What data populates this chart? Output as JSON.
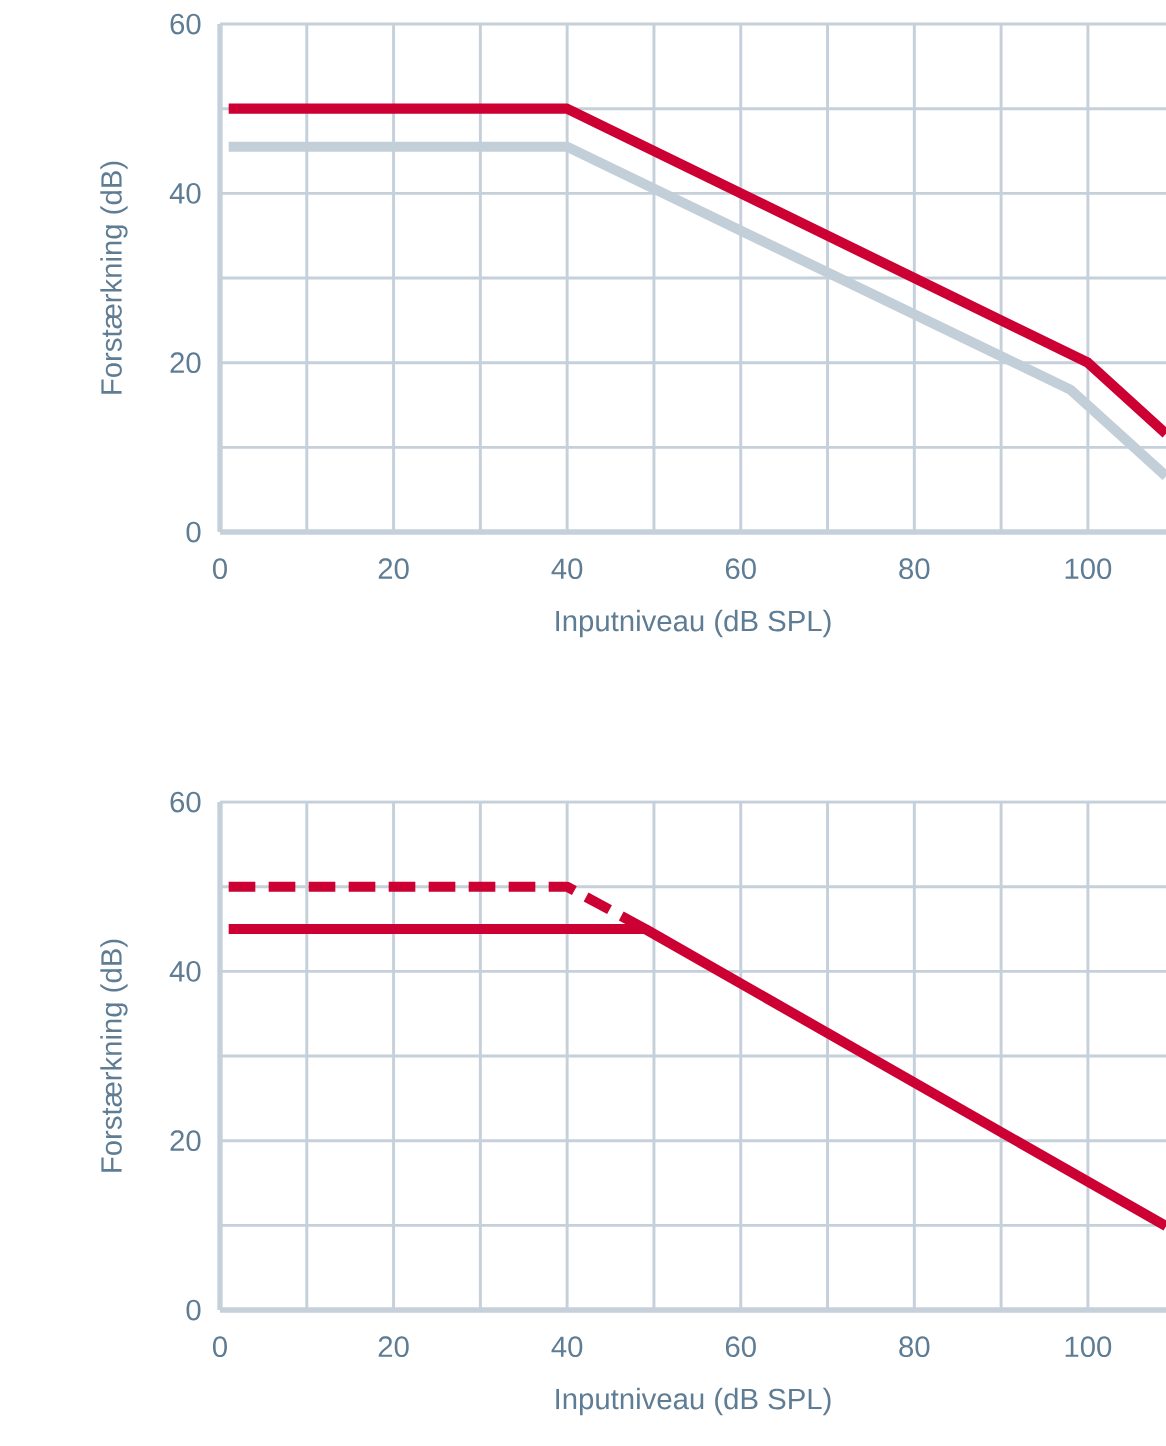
{
  "chart_data": [
    {
      "type": "line",
      "xlabel": "Inputniveau (dB SPL)",
      "ylabel": "Forstærkning (dB)",
      "xlim": [
        0,
        109
      ],
      "ylim": [
        0,
        60
      ],
      "xticks": [
        0,
        {
          "value": 10,
          "label": null
        },
        20,
        {
          "value": 30,
          "label": null
        },
        40,
        {
          "value": 50,
          "label": null
        },
        60,
        {
          "value": 70,
          "label": null
        },
        80,
        {
          "value": 90,
          "label": null
        },
        100
      ],
      "yticks": [
        0,
        {
          "value": 10,
          "label": null
        },
        20,
        {
          "value": 30,
          "label": null
        },
        40,
        {
          "value": 50,
          "label": null
        },
        60
      ],
      "grid": true,
      "marker": "none",
      "line_style": "solid",
      "series": [
        {
          "color": "#c3cfd8",
          "x": [
            1,
            40,
            98,
            109
          ],
          "values": [
            45.5,
            45.5,
            16.8,
            6.6
          ]
        },
        {
          "color": "#cc0033",
          "x": [
            1,
            40,
            100,
            109
          ],
          "values": [
            50,
            50,
            20,
            11.6
          ]
        }
      ]
    },
    {
      "type": "line",
      "xlabel": "Inputniveau (dB SPL)",
      "ylabel": "Forstærkning (dB)",
      "xlim": [
        0,
        109
      ],
      "ylim": [
        0,
        60
      ],
      "xticks": [
        0,
        {
          "value": 10,
          "label": null
        },
        20,
        {
          "value": 30,
          "label": null
        },
        40,
        {
          "value": 50,
          "label": null
        },
        60,
        {
          "value": 70,
          "label": null
        },
        80,
        {
          "value": 90,
          "label": null
        },
        100
      ],
      "yticks": [
        0,
        {
          "value": 10,
          "label": null
        },
        20,
        {
          "value": 30,
          "label": null
        },
        40,
        {
          "value": 50,
          "label": null
        },
        60
      ],
      "grid": true,
      "marker": "none",
      "line_style": "solid",
      "series": [
        {
          "color": "#cc0033",
          "line_style": "dashed",
          "x": [
            1,
            40,
            49
          ],
          "values": [
            50,
            50,
            45
          ]
        },
        {
          "color": "#cc0033",
          "x": [
            1,
            49,
            109
          ],
          "values": [
            45,
            45,
            9.9
          ]
        }
      ]
    }
  ]
}
